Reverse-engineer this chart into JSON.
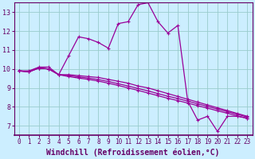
{
  "title": "",
  "xlabel": "Windchill (Refroidissement éolien,°C)",
  "ylabel": "",
  "bg_color": "#cceeff",
  "grid_color": "#99cccc",
  "line_color": "#990099",
  "spine_color": "#660066",
  "xlim": [
    -0.5,
    23.5
  ],
  "ylim": [
    6.5,
    13.5
  ],
  "yticks": [
    7,
    8,
    9,
    10,
    11,
    12,
    13
  ],
  "xticks": [
    0,
    1,
    2,
    3,
    4,
    5,
    6,
    7,
    8,
    9,
    10,
    11,
    12,
    13,
    14,
    15,
    16,
    17,
    18,
    19,
    20,
    21,
    22,
    23
  ],
  "series": [
    [
      9.9,
      9.9,
      10.1,
      10.1,
      9.7,
      10.7,
      11.7,
      11.6,
      11.4,
      11.1,
      12.4,
      12.5,
      13.4,
      13.5,
      12.5,
      11.9,
      12.3,
      8.3,
      7.3,
      7.5,
      6.7,
      7.5,
      7.5,
      7.4
    ],
    [
      9.9,
      9.85,
      10.05,
      10.0,
      9.7,
      9.7,
      9.65,
      9.6,
      9.55,
      9.45,
      9.35,
      9.25,
      9.1,
      9.0,
      8.85,
      8.7,
      8.55,
      8.4,
      8.25,
      8.1,
      7.95,
      7.8,
      7.65,
      7.5
    ],
    [
      9.9,
      9.85,
      10.05,
      10.0,
      9.7,
      9.65,
      9.58,
      9.52,
      9.44,
      9.34,
      9.22,
      9.1,
      8.97,
      8.84,
      8.7,
      8.56,
      8.44,
      8.3,
      8.16,
      8.02,
      7.88,
      7.74,
      7.6,
      7.46
    ],
    [
      9.9,
      9.85,
      10.05,
      10.0,
      9.7,
      9.6,
      9.52,
      9.45,
      9.36,
      9.25,
      9.13,
      9.0,
      8.87,
      8.73,
      8.59,
      8.45,
      8.33,
      8.2,
      8.06,
      7.93,
      7.79,
      7.66,
      7.52,
      7.39
    ]
  ]
}
